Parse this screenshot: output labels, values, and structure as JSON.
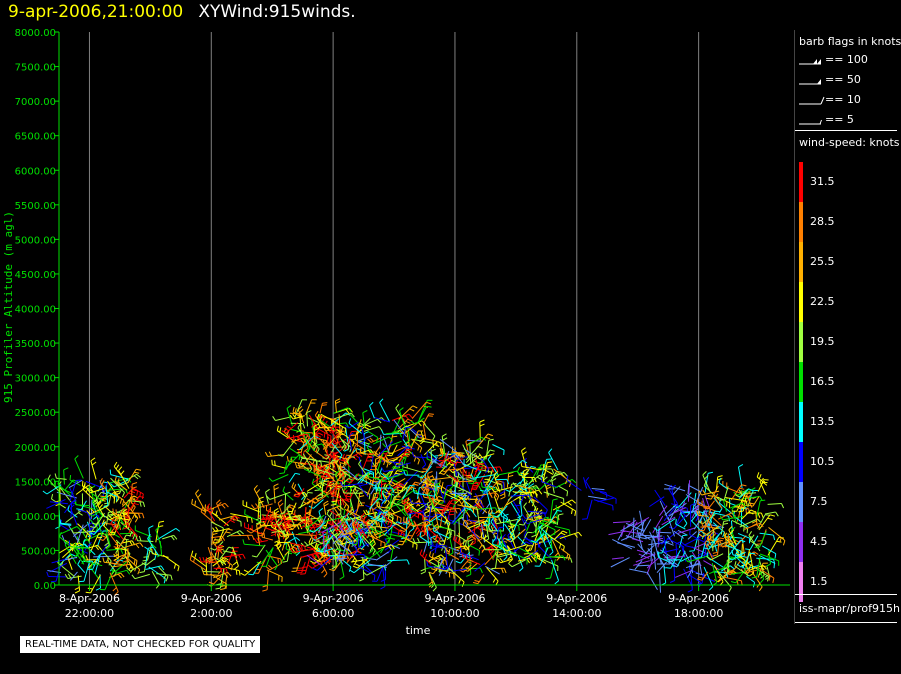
{
  "header": {
    "time": "9-apr-2006,21:00:00",
    "title": "XYWind:915winds."
  },
  "chart_data": {
    "type": "wind-barb",
    "ylabel": "915 Profiler Altitude (m agl)",
    "xlabel": "time",
    "ylim": [
      0,
      8000
    ],
    "y_ticks": [
      "0.00",
      "500.00",
      "1000.00",
      "1500.00",
      "2000.00",
      "2500.00",
      "3000.00",
      "3500.00",
      "4000.00",
      "4500.00",
      "5000.00",
      "5500.00",
      "6000.00",
      "6500.00",
      "7000.00",
      "7500.00",
      "8000.00"
    ],
    "x_ticks": [
      {
        "date": "8-Apr-2006",
        "time": "22:00:00"
      },
      {
        "date": "9-Apr-2006",
        "time": "2:00:00"
      },
      {
        "date": "9-Apr-2006",
        "time": "6:00:00"
      },
      {
        "date": "9-Apr-2006",
        "time": "10:00:00"
      },
      {
        "date": "9-Apr-2006",
        "time": "14:00:00"
      },
      {
        "date": "9-Apr-2006",
        "time": "18:00:00"
      }
    ],
    "x_range_hours": [
      21,
      45
    ],
    "grid": "vertical",
    "wind_clusters": [
      {
        "t_start": 21.0,
        "t_end": 22.4,
        "h_min": 100,
        "h_max": 1550,
        "speed": [
          8,
          24
        ]
      },
      {
        "t_start": 22.4,
        "t_end": 23.3,
        "h_min": 100,
        "h_max": 1550,
        "speed": [
          14,
          28
        ]
      },
      {
        "t_start": 23.1,
        "t_end": 23.4,
        "h_min": 350,
        "h_max": 1600,
        "speed": [
          20,
          32
        ]
      },
      {
        "t_start": 23.8,
        "t_end": 24.6,
        "h_min": 150,
        "h_max": 700,
        "speed": [
          14,
          22
        ]
      },
      {
        "t_start": 25.8,
        "t_end": 26.7,
        "h_min": 100,
        "h_max": 1100,
        "speed": [
          18,
          32
        ]
      },
      {
        "t_start": 27.5,
        "t_end": 28.4,
        "h_min": 200,
        "h_max": 1200,
        "speed": [
          14,
          32
        ]
      },
      {
        "t_start": 28.4,
        "t_end": 30.6,
        "h_min": 300,
        "h_max": 2500,
        "speed": [
          14,
          34
        ]
      },
      {
        "t_start": 29.6,
        "t_end": 32.0,
        "h_min": 250,
        "h_max": 1000,
        "speed": [
          5,
          22
        ]
      },
      {
        "t_start": 30.6,
        "t_end": 33.0,
        "h_min": 700,
        "h_max": 2450,
        "speed": [
          8,
          33
        ]
      },
      {
        "t_start": 33.0,
        "t_end": 35.3,
        "h_min": 150,
        "h_max": 2100,
        "speed": [
          6,
          33
        ]
      },
      {
        "t_start": 35.3,
        "t_end": 37.5,
        "h_min": 300,
        "h_max": 1700,
        "speed": [
          10,
          25
        ]
      },
      {
        "t_start": 38.1,
        "t_end": 38.9,
        "h_min": 1200,
        "h_max": 1400,
        "speed": [
          8,
          12
        ]
      },
      {
        "t_start": 39.5,
        "t_end": 40.8,
        "h_min": 150,
        "h_max": 950,
        "speed": [
          4,
          9
        ]
      },
      {
        "t_start": 40.8,
        "t_end": 42.3,
        "h_min": 100,
        "h_max": 1400,
        "speed": [
          4,
          14
        ]
      },
      {
        "t_start": 42.3,
        "t_end": 44.3,
        "h_min": 100,
        "h_max": 1450,
        "speed": [
          12,
          30
        ]
      }
    ]
  },
  "legend": {
    "barb_title": "barb flags in knots",
    "barb_items": [
      {
        "label": "== 100",
        "type": "flag2"
      },
      {
        "label": "== 50",
        "type": "flag"
      },
      {
        "label": "== 10",
        "type": "long"
      },
      {
        "label": "== 5",
        "type": "short"
      }
    ],
    "speed_title": "wind-speed: knots",
    "speed_scale": [
      {
        "label": "31.5",
        "color": "#ff0000"
      },
      {
        "label": "28.5",
        "color": "#ff8000"
      },
      {
        "label": "25.5",
        "color": "#ffb000"
      },
      {
        "label": "22.5",
        "color": "#ffff00"
      },
      {
        "label": "19.5",
        "color": "#a0ff40"
      },
      {
        "label": "16.5",
        "color": "#00e000"
      },
      {
        "label": "13.5",
        "color": "#00ffff"
      },
      {
        "label": "10.5",
        "color": "#0000ff"
      },
      {
        "label": "7.5",
        "color": "#6090ff"
      },
      {
        "label": "4.5",
        "color": "#9030f0"
      },
      {
        "label": "1.5",
        "color": "#f080f0"
      }
    ],
    "source": "iss-mapr/prof915h"
  },
  "notice": "REAL-TIME DATA, NOT CHECKED FOR QUALITY",
  "colors": {
    "axis": "#00e000",
    "grid": "#808080",
    "text": "#ffffff",
    "header_time": "#ffff00"
  }
}
